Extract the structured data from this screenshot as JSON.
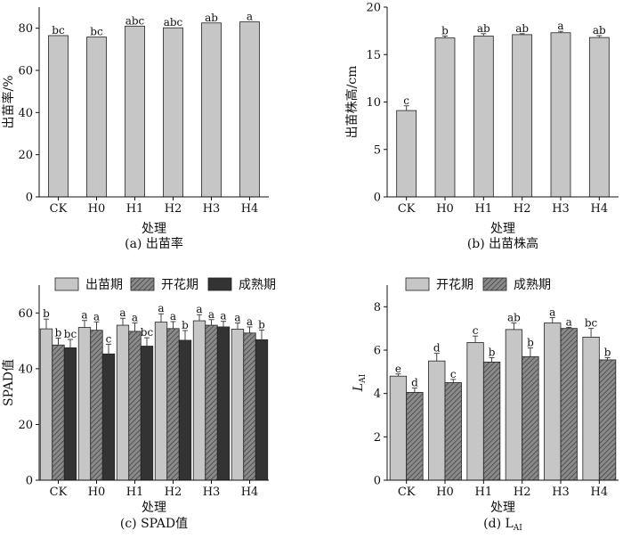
{
  "chart_data": [
    {
      "id": "a",
      "type": "bar",
      "caption": "(a) 出苗率",
      "xlabel": "处理",
      "ylabel": "出苗率/%",
      "categories": [
        "CK",
        "H0",
        "H1",
        "H2",
        "H3",
        "H4"
      ],
      "ylim": [
        0,
        90
      ],
      "yticks": [
        0,
        20,
        40,
        60,
        80
      ],
      "series": [
        {
          "name": "出苗率",
          "fill": "#c6c6c6",
          "pattern": "solid",
          "values": [
            76.5,
            75.8,
            81.0,
            80.2,
            82.5,
            83.0
          ],
          "errors": [
            0,
            0,
            0,
            0,
            0,
            0
          ],
          "labels": [
            "bc",
            "bc",
            "abc",
            "abc",
            "ab",
            "a"
          ]
        }
      ]
    },
    {
      "id": "b",
      "type": "bar",
      "caption": "(b) 出苗株高",
      "xlabel": "处理",
      "ylabel": "出苗株高/cm",
      "categories": [
        "CK",
        "H0",
        "H1",
        "H2",
        "H3",
        "H4"
      ],
      "ylim": [
        0,
        20
      ],
      "yticks": [
        0,
        5,
        10,
        15,
        20
      ],
      "series": [
        {
          "name": "出苗株高",
          "fill": "#c6c6c6",
          "pattern": "solid",
          "values": [
            9.1,
            16.75,
            16.95,
            17.1,
            17.3,
            16.8
          ],
          "errors": [
            0.5,
            0.2,
            0.25,
            0.1,
            0.15,
            0.2
          ],
          "labels": [
            "c",
            "b",
            "ab",
            "ab",
            "a",
            "ab"
          ]
        }
      ]
    },
    {
      "id": "c",
      "type": "bar",
      "caption": "(c) SPAD值",
      "xlabel": "处理",
      "ylabel": "SPAD值",
      "categories": [
        "CK",
        "H0",
        "H1",
        "H2",
        "H3",
        "H4"
      ],
      "ylim": [
        0,
        70
      ],
      "yticks": [
        0,
        20,
        40,
        60
      ],
      "series": [
        {
          "name": "出苗期",
          "fill": "#c6c6c6",
          "pattern": "solid",
          "values": [
            54.3,
            54.8,
            55.6,
            56.7,
            57.2,
            54.2
          ],
          "errors": [
            3.5,
            2.5,
            2.5,
            3.0,
            2.2,
            2.2
          ],
          "labels": [
            "b",
            "a",
            "a",
            "a",
            "a",
            "a"
          ]
        },
        {
          "name": "开花期",
          "fill": "#7c7c7c",
          "pattern": "hatch",
          "values": [
            48.5,
            53.8,
            53.4,
            54.4,
            55.6,
            52.8
          ],
          "errors": [
            2.5,
            3.0,
            3.0,
            2.5,
            2.0,
            2.2
          ],
          "labels": [
            "b",
            "a",
            "a",
            "a",
            "a",
            "a"
          ]
        },
        {
          "name": "成熟期",
          "fill": "#333333",
          "pattern": "solid",
          "values": [
            47.5,
            45.3,
            48.1,
            50.2,
            55.0,
            50.4
          ],
          "errors": [
            3.0,
            3.5,
            3.0,
            3.5,
            2.0,
            3.5
          ],
          "labels": [
            "bc",
            "c",
            "bc",
            "b",
            "a",
            "b"
          ]
        }
      ]
    },
    {
      "id": "d",
      "type": "bar",
      "caption": "(d) L",
      "caption_sub": "AI",
      "xlabel": "处理",
      "ylabel": "L",
      "ylabel_sub": "AI",
      "categories": [
        "CK",
        "H0",
        "H1",
        "H2",
        "H3",
        "H4"
      ],
      "ylim": [
        0,
        9
      ],
      "yticks": [
        0,
        2,
        4,
        6,
        8
      ],
      "series": [
        {
          "name": "开花期",
          "fill": "#c6c6c6",
          "pattern": "solid",
          "values": [
            4.8,
            5.5,
            6.35,
            6.95,
            7.25,
            6.6
          ],
          "errors": [
            0.1,
            0.35,
            0.3,
            0.3,
            0.25,
            0.4
          ],
          "labels": [
            "e",
            "d",
            "c",
            "ab",
            "a",
            "bc"
          ]
        },
        {
          "name": "成熟期",
          "fill": "#7c7c7c",
          "pattern": "hatch",
          "values": [
            4.05,
            4.5,
            5.45,
            5.7,
            7.0,
            5.55
          ],
          "errors": [
            0.2,
            0.15,
            0.2,
            0.4,
            0.05,
            0.1
          ],
          "labels": [
            "d",
            "c",
            "b",
            "b",
            "a",
            "b"
          ]
        }
      ]
    }
  ]
}
